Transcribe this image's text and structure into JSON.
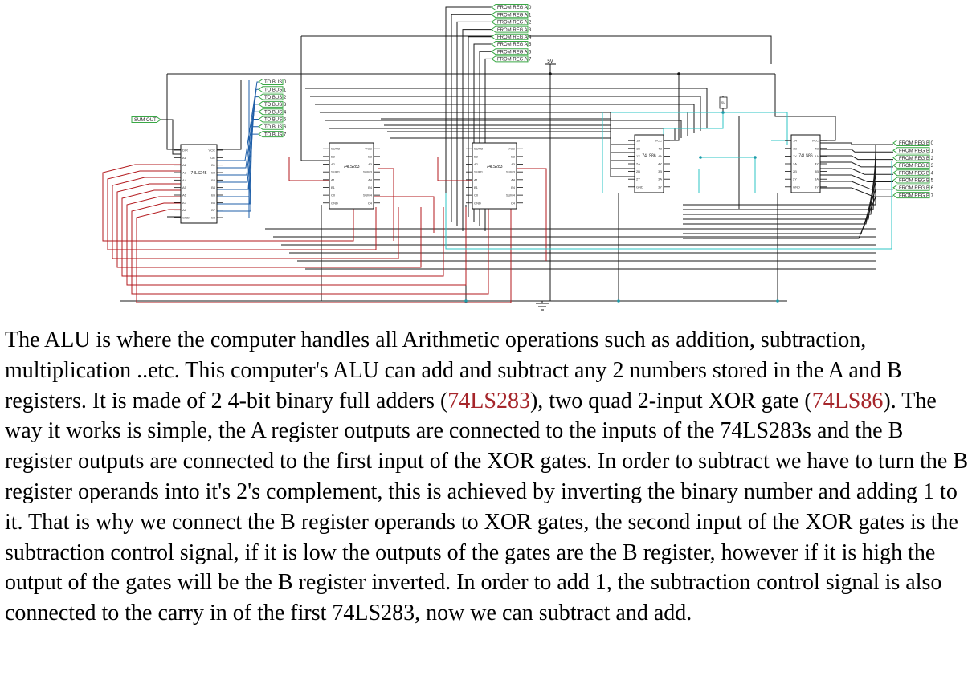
{
  "schematic": {
    "reg_a_labels": [
      "FROM REG A 0",
      "FROM REG A 1",
      "FROM REG A 2",
      "FROM REG A 3",
      "FROM REG A 4",
      "FROM REG A 5",
      "FROM REG A 6",
      "FROM REG A 7"
    ],
    "reg_b_labels": [
      "FROM REG B 0",
      "FROM REG B 1",
      "FROM REG B 2",
      "FROM REG B 3",
      "FROM REG B 4",
      "FROM REG B 5",
      "FROM REG B 6",
      "FROM REG B 7"
    ],
    "bus_labels": [
      "TO BUS 0",
      "TO BUS 1",
      "TO BUS 2",
      "TO BUS 3",
      "TO BUS 4",
      "TO BUS 5",
      "TO BUS 6",
      "TO BUS 7"
    ],
    "sum_out_label": "SUM OUT",
    "supply_label": "5V",
    "sub_label": "SU",
    "chips": [
      {
        "id": "chip-74ls245",
        "name": "74LS245"
      },
      {
        "id": "chip-74ls283-1",
        "name": "74LS283"
      },
      {
        "id": "chip-74ls283-2",
        "name": "74LS283"
      },
      {
        "id": "chip-74ls86-1",
        "name": "74LS86"
      },
      {
        "id": "chip-74ls86-2",
        "name": "74LS86"
      }
    ],
    "pins_245": {
      "left": [
        "DIR",
        "A1",
        "A2",
        "A3",
        "A4",
        "A5",
        "A6",
        "A7",
        "A8",
        "GND"
      ],
      "right": [
        "VCC",
        "OE",
        "B1",
        "B2",
        "B3",
        "B4",
        "B5",
        "B6",
        "B7",
        "B8"
      ]
    },
    "pins_283": {
      "left": [
        "SUM2",
        "B2",
        "A2",
        "SUM1",
        "A1",
        "B1",
        "C0",
        "GND"
      ],
      "right": [
        "VCC",
        "B3",
        "A3",
        "SUM3",
        "A4",
        "B4",
        "SUM4",
        "C4"
      ]
    },
    "pins_86": {
      "left": [
        "1A",
        "1B",
        "1Y",
        "2A",
        "2B",
        "2Y",
        "GND"
      ],
      "right": [
        "VCC",
        "4B",
        "4A",
        "4Y",
        "3B",
        "3A",
        "3Y"
      ]
    }
  },
  "description": {
    "part1": "The ALU is where the computer handles all Arithmetic operations such as addition, subtraction, multiplication ..etc. This computer's ALU can add and subtract any 2 numbers stored in the A and B registers. It is made of 2 4-bit binary full adders (",
    "link1": "74LS283",
    "part2": "), two quad 2-input XOR gate (",
    "link2": "74LS86",
    "part3": "). The way it works is simple, the A register outputs are connected to the inputs of the 74LS283s and the B register outputs are connected to the first input of the XOR gates. In order to subtract we have to turn the B register operands into it's 2's complement, this is achieved by inverting the binary number and adding 1 to it. That is why we connect the B register operands to XOR gates, the second input of the XOR gates is the subtraction control signal, if it is low the outputs of the gates are the B register, however if it is high the output of the gates will be the B register inverted. In order to add 1, the subtraction control signal is also connected to the carry in of the first 74LS283, now we can subtract and add."
  }
}
